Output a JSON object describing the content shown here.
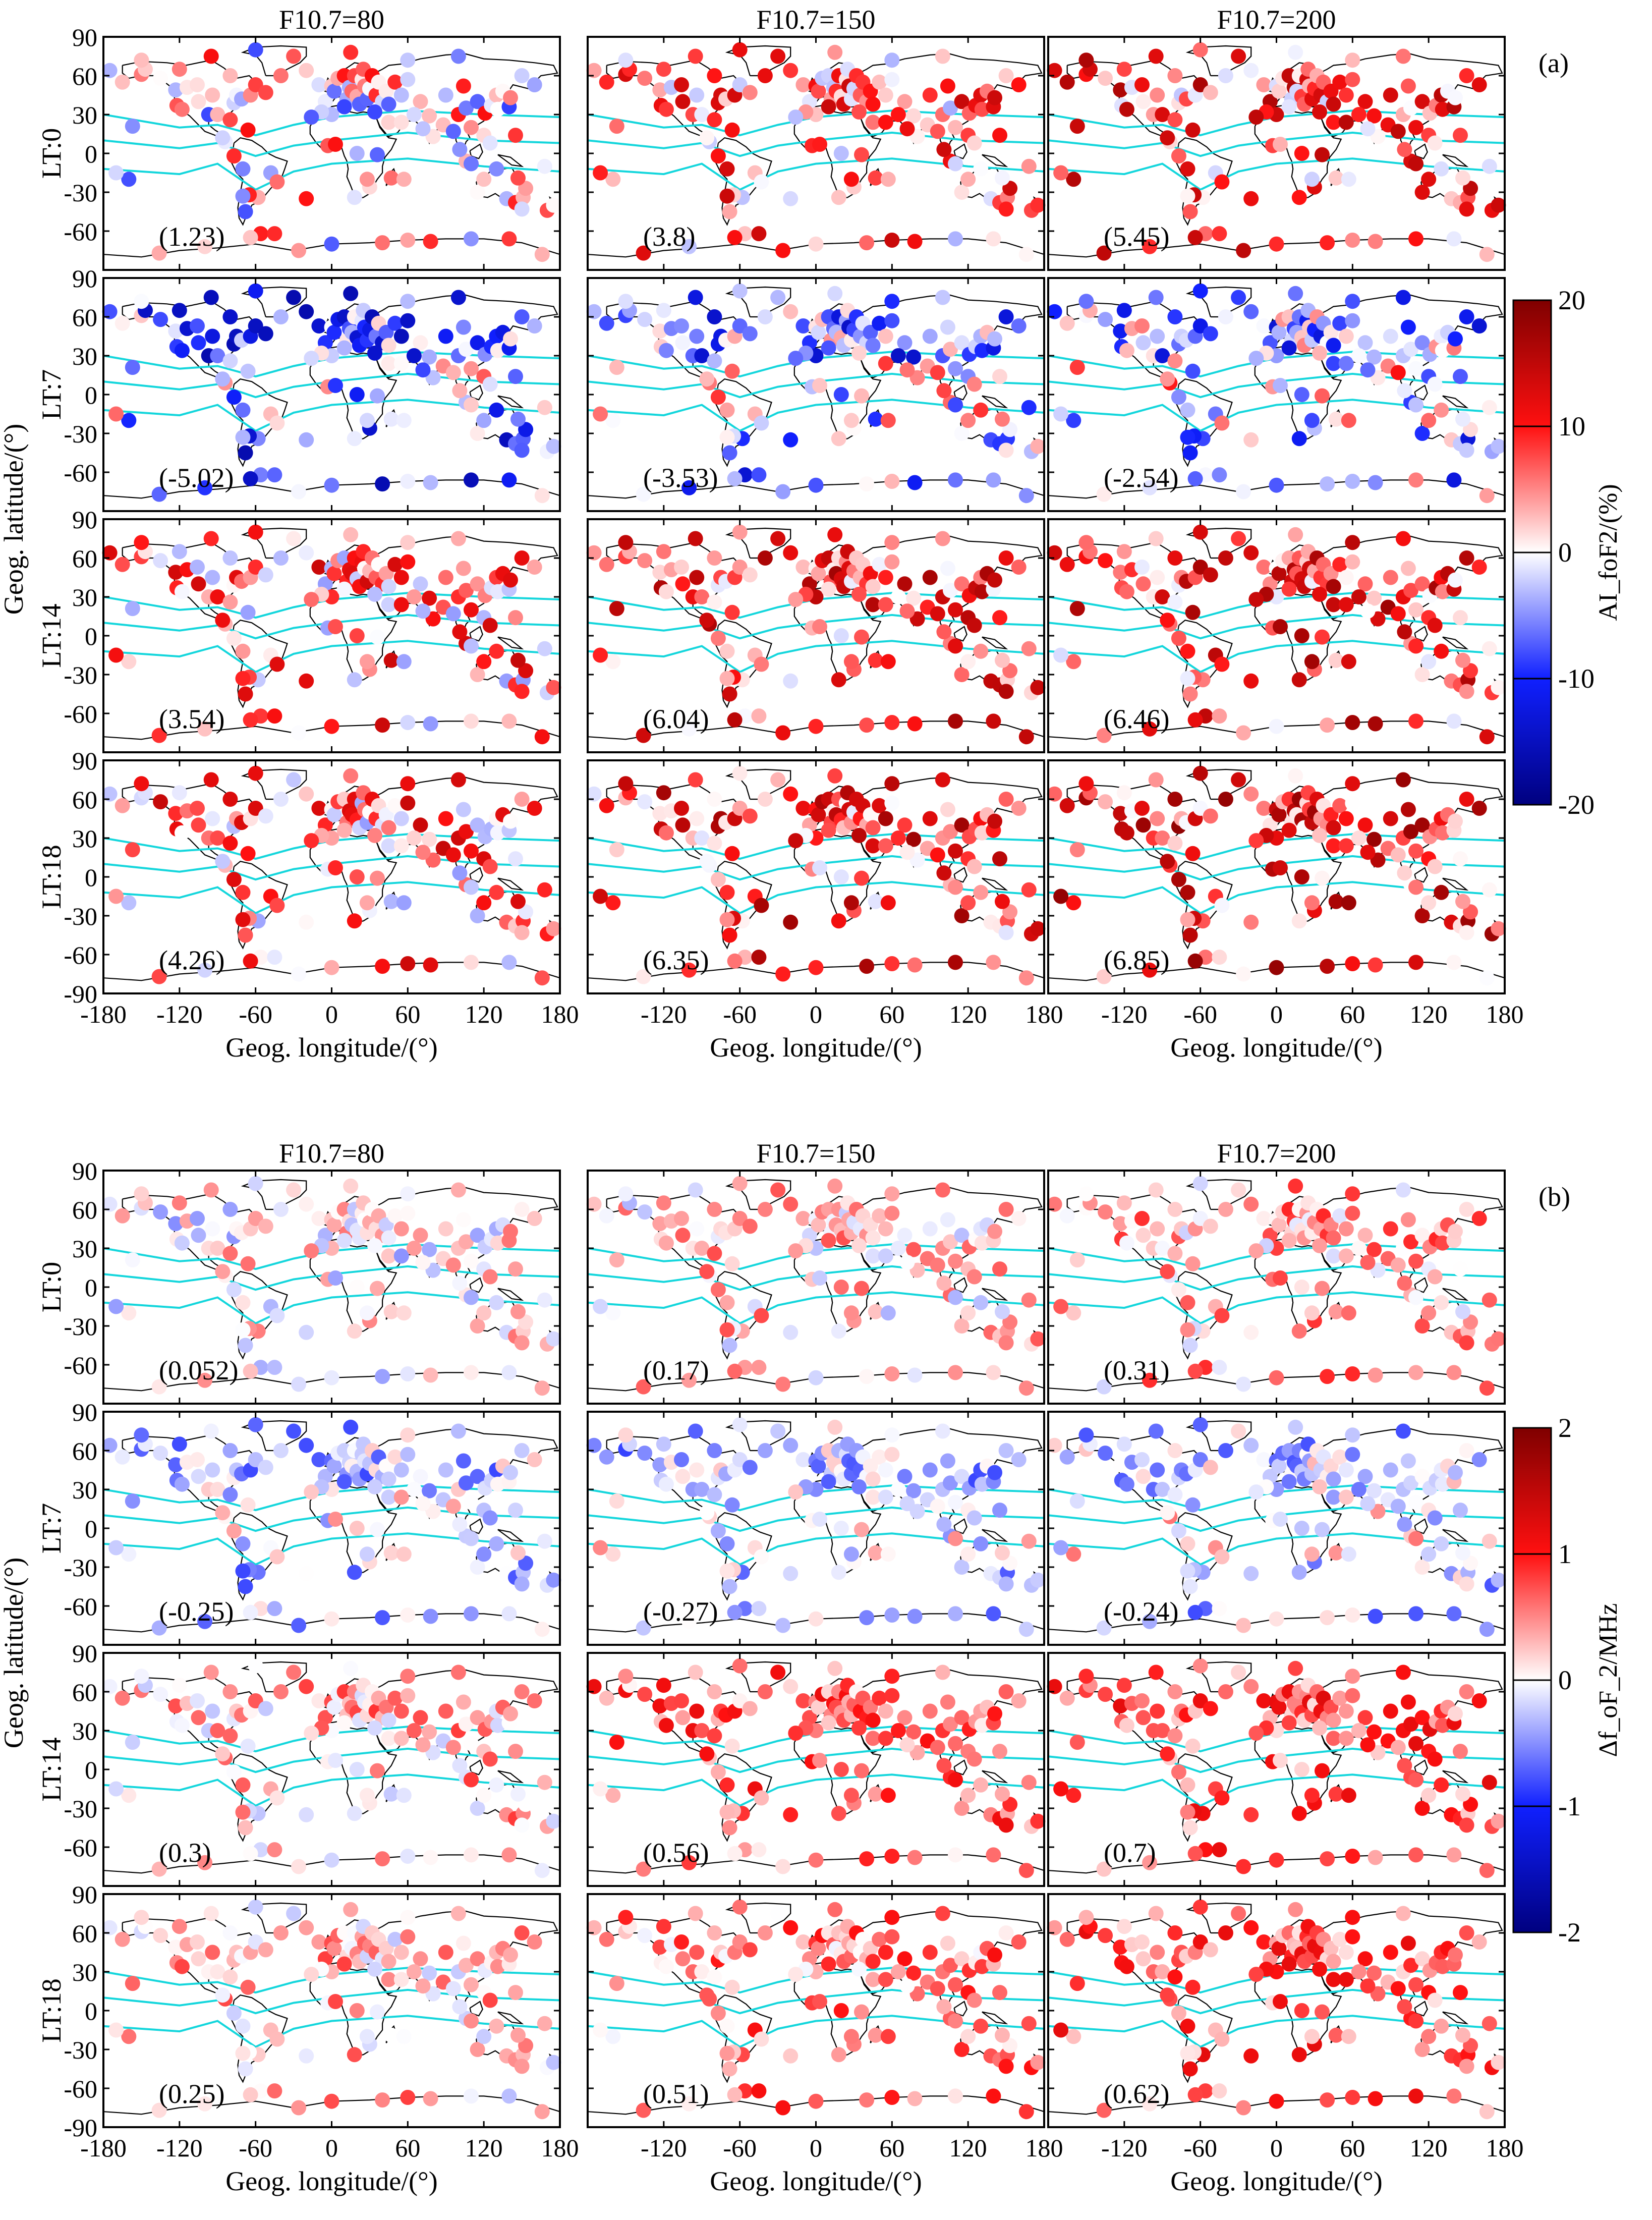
{
  "chart_data": {
    "type": "scatter",
    "panels": [
      {
        "label": "(a)",
        "column_titles": [
          "F10.7=80",
          "F10.7=150",
          "F10.7=200"
        ],
        "row_labels": [
          "LT:0",
          "LT:7",
          "LT:14",
          "LT:18"
        ],
        "means": [
          [
            "(1.23)",
            "(3.8)",
            "(5.45)"
          ],
          [
            "(-5.02)",
            "(-3.53)",
            "(-2.54)"
          ],
          [
            "(3.54)",
            "(6.04)",
            "(6.46)"
          ],
          [
            "(4.26)",
            "(6.35)",
            "(6.85)"
          ]
        ],
        "colorbar_label": "AI_foF2/(%)",
        "colorbar_ticks": [
          "20",
          "10",
          "0",
          "-10",
          "-20"
        ],
        "clim": [
          -20,
          20
        ],
        "row_bias": [
          [
            1,
            5,
            7
          ],
          [
            -7,
            -5,
            -4
          ],
          [
            5,
            8,
            8
          ],
          [
            5,
            8,
            9
          ]
        ],
        "spread": 6
      },
      {
        "label": "(b)",
        "column_titles": [
          "F10.7=80",
          "F10.7=150",
          "F10.7=200"
        ],
        "row_labels": [
          "LT:0",
          "LT:7",
          "LT:14",
          "LT:18"
        ],
        "means": [
          [
            "(0.052)",
            "(0.17)",
            "(0.31)"
          ],
          [
            "(-0.25)",
            "(-0.27)",
            "(-0.24)"
          ],
          [
            "(0.3)",
            "(0.56)",
            "(0.7)"
          ],
          [
            "(0.25)",
            "(0.51)",
            "(0.62)"
          ]
        ],
        "colorbar_label": "Δf_oF_2/MHz",
        "colorbar_ticks": [
          "2",
          "1",
          "0",
          "-1",
          "-2"
        ],
        "clim": [
          -2,
          2
        ],
        "row_bias": [
          [
            0.05,
            0.2,
            0.35
          ],
          [
            -0.3,
            -0.3,
            -0.25
          ],
          [
            0.3,
            0.6,
            0.7
          ],
          [
            0.25,
            0.5,
            0.65
          ]
        ],
        "spread": 0.35
      }
    ],
    "xlabel": "Geog. longitude/(°)",
    "ylabel": "Geog. latitude/(°)",
    "xlim": [
      -180,
      180
    ],
    "ylim": [
      -90,
      90
    ],
    "xticks": [
      "-180",
      "-120",
      "-60",
      "0",
      "60",
      "120",
      "180"
    ],
    "yticks": [
      "90",
      "60",
      "30",
      "0",
      "-30",
      "-60",
      "-90"
    ],
    "stations": [
      [
        -157,
        21
      ],
      [
        -150,
        61
      ],
      [
        -147,
        65
      ],
      [
        -135,
        58
      ],
      [
        -123,
        49
      ],
      [
        -122,
        37
      ],
      [
        -118,
        34
      ],
      [
        -114,
        51
      ],
      [
        -105,
        40
      ],
      [
        -106,
        53
      ],
      [
        -97,
        30
      ],
      [
        -94,
        45
      ],
      [
        -90,
        30
      ],
      [
        -84,
        9
      ],
      [
        -80,
        26
      ],
      [
        -77,
        39
      ],
      [
        -75,
        45
      ],
      [
        -71,
        42
      ],
      [
        -66,
        18
      ],
      [
        -64,
        45
      ],
      [
        -60,
        53
      ],
      [
        -52,
        47
      ],
      [
        -68,
        -45
      ],
      [
        -58,
        -34
      ],
      [
        -65,
        -32
      ],
      [
        -48,
        -15
      ],
      [
        -43,
        -22
      ],
      [
        -70,
        -12
      ],
      [
        -77,
        -2
      ],
      [
        -70,
        -33
      ],
      [
        -86,
        12
      ],
      [
        -20,
        64
      ],
      [
        -10,
        53
      ],
      [
        -5,
        40
      ],
      [
        0,
        52
      ],
      [
        2,
        48
      ],
      [
        5,
        58
      ],
      [
        10,
        60
      ],
      [
        12,
        42
      ],
      [
        14,
        51
      ],
      [
        16,
        48
      ],
      [
        18,
        60
      ],
      [
        20,
        44
      ],
      [
        22,
        38
      ],
      [
        24,
        57
      ],
      [
        25,
        65
      ],
      [
        26,
        52
      ],
      [
        28,
        42
      ],
      [
        30,
        50
      ],
      [
        32,
        60
      ],
      [
        35,
        45
      ],
      [
        37,
        55
      ],
      [
        40,
        40
      ],
      [
        43,
        48
      ],
      [
        45,
        38
      ],
      [
        50,
        55
      ],
      [
        55,
        45
      ],
      [
        60,
        57
      ],
      [
        70,
        40
      ],
      [
        77,
        29
      ],
      [
        80,
        13
      ],
      [
        90,
        45
      ],
      [
        104,
        52
      ],
      [
        100,
        30
      ],
      [
        106,
        35
      ],
      [
        110,
        20
      ],
      [
        115,
        40
      ],
      [
        121,
        31
      ],
      [
        120,
        14
      ],
      [
        126,
        37
      ],
      [
        130,
        45
      ],
      [
        131,
        34
      ],
      [
        135,
        48
      ],
      [
        140,
        36
      ],
      [
        141,
        43
      ],
      [
        150,
        60
      ],
      [
        160,
        53
      ],
      [
        -3,
        6
      ],
      [
        3,
        7
      ],
      [
        20,
        0
      ],
      [
        36,
        -1
      ],
      [
        30,
        -26
      ],
      [
        18,
        -34
      ],
      [
        28,
        -20
      ],
      [
        47,
        -19
      ],
      [
        57,
        -20
      ],
      [
        106,
        -6
      ],
      [
        110,
        -8
      ],
      [
        115,
        -30
      ],
      [
        120,
        -20
      ],
      [
        130,
        -12
      ],
      [
        138,
        -35
      ],
      [
        145,
        -38
      ],
      [
        151,
        -34
      ],
      [
        153,
        -27
      ],
      [
        147,
        -19
      ],
      [
        150,
        -43
      ],
      [
        170,
        -44
      ],
      [
        175,
        -40
      ],
      [
        -175,
        64
      ],
      [
        -165,
        55
      ],
      [
        -160,
        -20
      ],
      [
        -170,
        -15
      ],
      [
        140,
        -66
      ],
      [
        110,
        -66
      ],
      [
        78,
        -68
      ],
      [
        60,
        -67
      ],
      [
        40,
        -69
      ],
      [
        0,
        -70
      ],
      [
        -26,
        -75
      ],
      [
        -56,
        -62
      ],
      [
        -64,
        -65
      ],
      [
        -100,
        -72
      ],
      [
        -136,
        -77
      ],
      [
        166,
        -78
      ],
      [
        -20,
        -35
      ],
      [
        -45,
        -62
      ],
      [
        -60,
        80
      ],
      [
        -30,
        75
      ],
      [
        15,
        78
      ],
      [
        60,
        72
      ],
      [
        100,
        75
      ],
      [
        -95,
        75
      ],
      [
        -150,
        72
      ],
      [
        -120,
        65
      ],
      [
        -80,
        60
      ],
      [
        -40,
        60
      ],
      [
        88,
        22
      ],
      [
        72,
        19
      ],
      [
        101,
        3
      ],
      [
        96,
        17
      ],
      [
        125,
        8
      ],
      [
        145,
        14
      ],
      [
        168,
        -10
      ],
      [
        0,
        30
      ],
      [
        10,
        36
      ],
      [
        34,
        32
      ],
      [
        45,
        24
      ],
      [
        55,
        24
      ],
      [
        65,
        30
      ],
      [
        -8,
        32
      ],
      [
        -16,
        28
      ]
    ]
  }
}
